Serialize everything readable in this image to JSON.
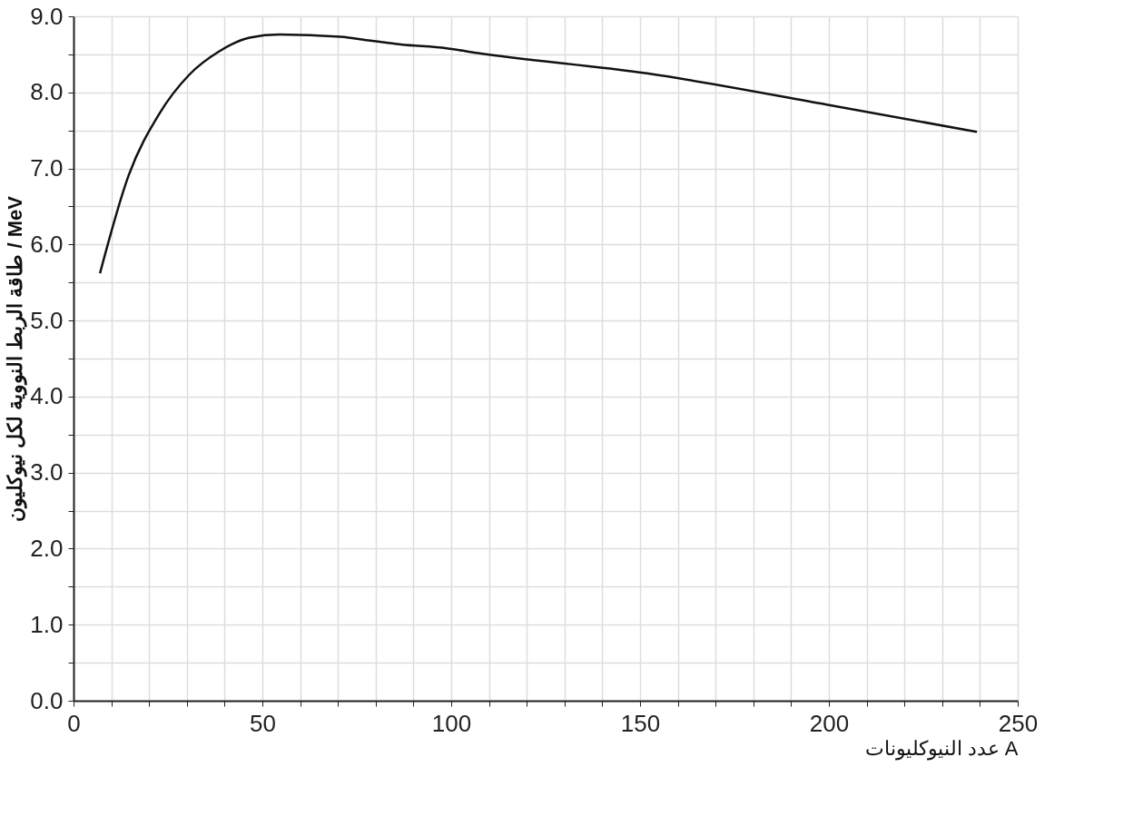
{
  "chart_data": {
    "type": "line",
    "xlabel": "عدد النيوكليونات A",
    "ylabel": "طاقة الربط النووية لكل نيوكليون / MeV",
    "x": [
      7.0,
      14.6,
      22.6,
      30.6,
      38.6,
      46.6,
      54.6,
      70.7,
      78.6,
      86.7,
      98.8,
      106.7,
      151.8,
      199.4,
      239.2
    ],
    "series": [
      {
        "color": "#111111",
        "values": [
          5.62,
          6.91,
          7.71,
          8.23,
          8.54,
          8.72,
          8.76,
          8.73,
          8.68,
          8.63,
          8.58,
          8.52,
          8.25,
          7.84,
          7.48
        ]
      }
    ],
    "xlim": [
      0,
      250
    ],
    "xticks": [
      0,
      {
        "value": 10,
        "label": null
      },
      {
        "value": 20,
        "label": null
      },
      {
        "value": 30,
        "label": null
      },
      {
        "value": 40,
        "label": null
      },
      50,
      {
        "value": 60,
        "label": null
      },
      {
        "value": 70,
        "label": null
      },
      {
        "value": 80,
        "label": null
      },
      {
        "value": 90,
        "label": null
      },
      100,
      {
        "value": 110,
        "label": null
      },
      {
        "value": 120,
        "label": null
      },
      {
        "value": 130,
        "label": null
      },
      {
        "value": 140,
        "label": null
      },
      150,
      {
        "value": 160,
        "label": null
      },
      {
        "value": 170,
        "label": null
      },
      {
        "value": 180,
        "label": null
      },
      {
        "value": 190,
        "label": null
      },
      200,
      {
        "value": 210,
        "label": null
      },
      {
        "value": 220,
        "label": null
      },
      {
        "value": 230,
        "label": null
      },
      {
        "value": 240,
        "label": null
      },
      250
    ],
    "ylim": [
      0,
      9
    ],
    "yticks": [
      {
        "value": 0,
        "label": "0.0"
      },
      {
        "value": 0.5,
        "label": null
      },
      {
        "value": 1,
        "label": "1.0"
      },
      {
        "value": 1.5,
        "label": null
      },
      {
        "value": 2,
        "label": "2.0"
      },
      {
        "value": 2.5,
        "label": null
      },
      {
        "value": 3,
        "label": "3.0"
      },
      {
        "value": 3.5,
        "label": null
      },
      {
        "value": 4,
        "label": "4.0"
      },
      {
        "value": 4.5,
        "label": null
      },
      {
        "value": 5,
        "label": "5.0"
      },
      {
        "value": 5.5,
        "label": null
      },
      {
        "value": 6,
        "label": "6.0"
      },
      {
        "value": 6.5,
        "label": null
      },
      {
        "value": 7,
        "label": "7.0"
      },
      {
        "value": 7.5,
        "label": null
      },
      {
        "value": 8,
        "label": "8.0"
      },
      {
        "value": 8.5,
        "label": null
      },
      {
        "value": 9,
        "label": "9.0"
      }
    ],
    "grid": true,
    "marker": "none",
    "line_style": "solid"
  }
}
